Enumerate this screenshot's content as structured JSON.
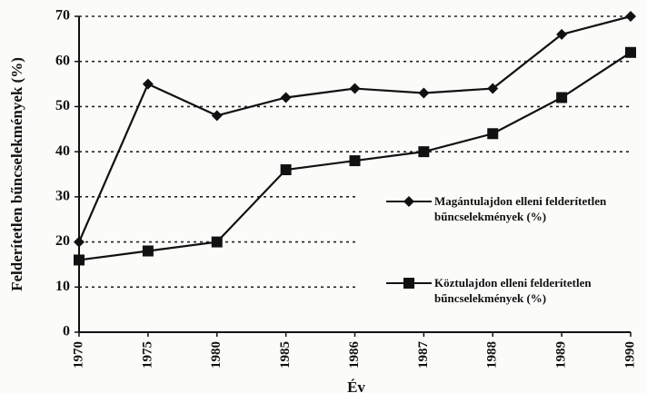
{
  "chart_data": {
    "type": "line",
    "ylabel": "Felderítetlen bűncselekmények (%)",
    "xlabel": "Év",
    "categories": [
      "1970",
      "1975",
      "1980",
      "1985",
      "1986",
      "1987",
      "1988",
      "1989",
      "1990"
    ],
    "series": [
      {
        "name": "Magántulajdon elleni felderítetlen bűncselekmények (%)",
        "color": "#111111",
        "marker": "diamond",
        "values": [
          20,
          55,
          48,
          52,
          54,
          53,
          54,
          66,
          70
        ]
      },
      {
        "name": "Köztulajdon elleni felderítetlen bűncselekmények (%)",
        "color": "#111111",
        "marker": "square",
        "values": [
          16,
          18,
          20,
          36,
          38,
          40,
          44,
          52,
          62
        ]
      }
    ],
    "ylim": [
      0,
      70
    ],
    "yticks": [
      0,
      10,
      20,
      30,
      40,
      50,
      60,
      70
    ],
    "grid": true
  }
}
